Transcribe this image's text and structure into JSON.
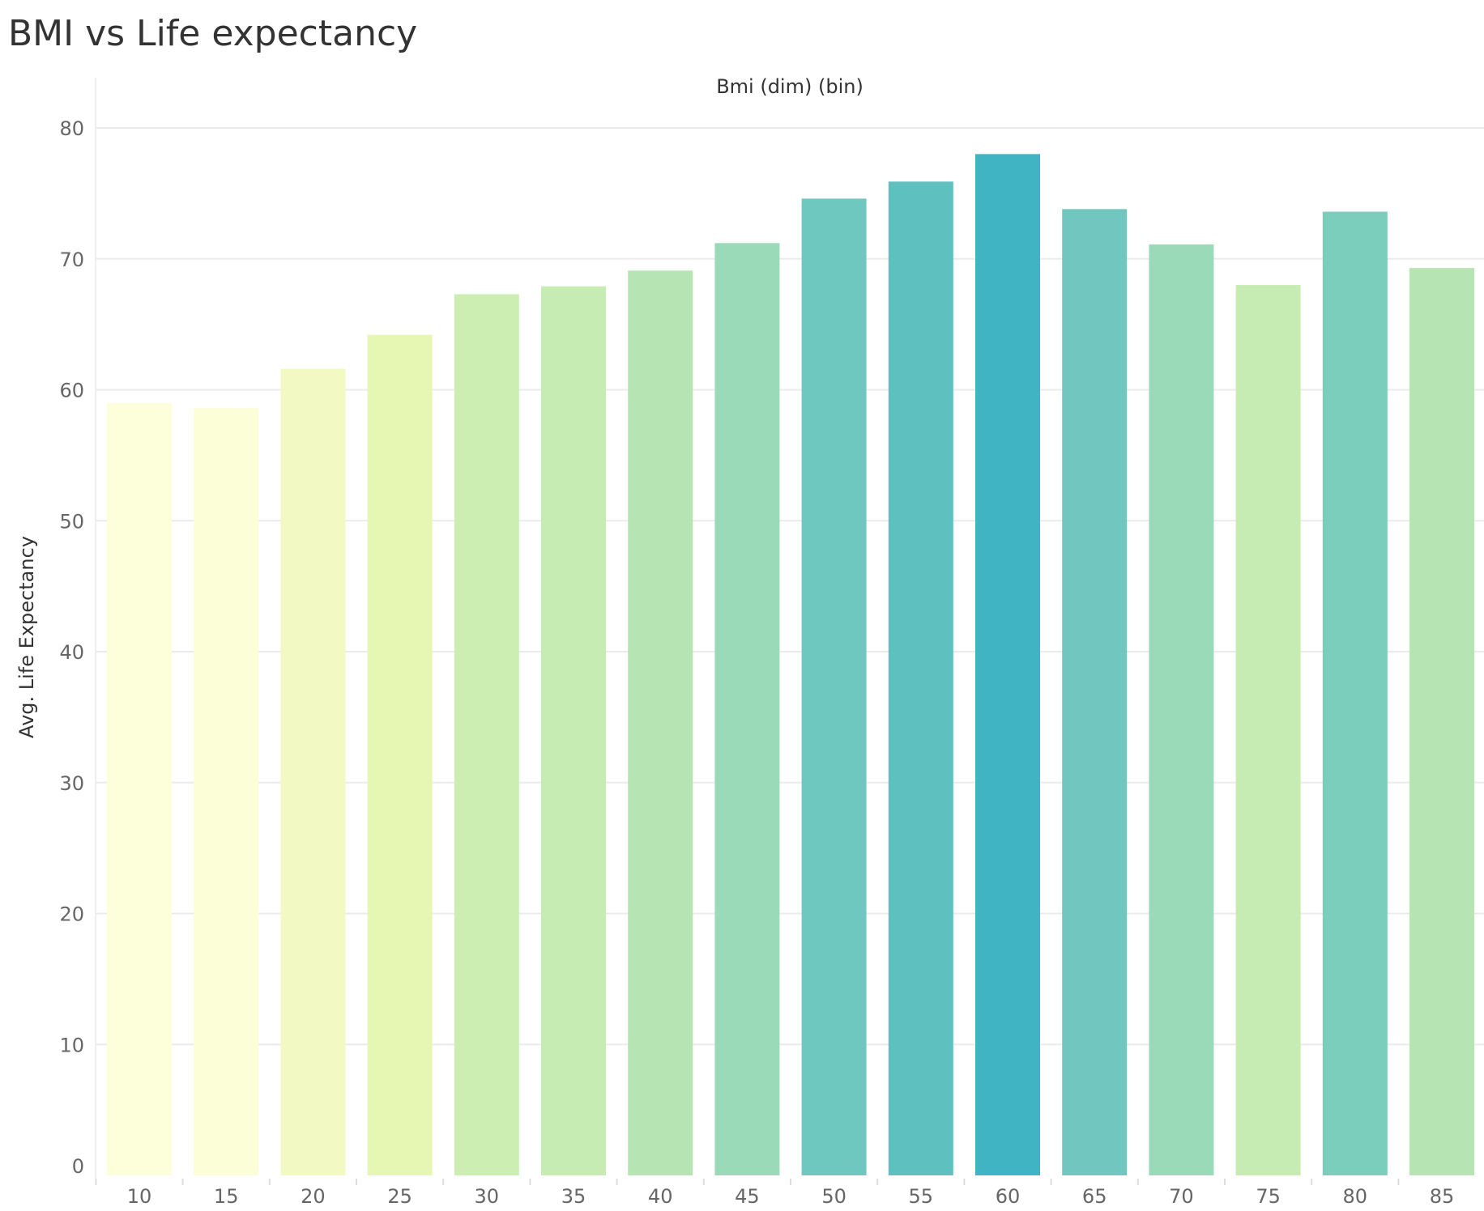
{
  "chart_data": {
    "type": "bar",
    "title": "BMI vs Life expectancy",
    "xlabel": "Bmi (dim) (bin)",
    "ylabel": "Avg. Life Expectancy",
    "categories": [
      "10",
      "15",
      "20",
      "25",
      "30",
      "35",
      "40",
      "45",
      "50",
      "55",
      "60",
      "65",
      "70",
      "75",
      "80",
      "85"
    ],
    "values": [
      59.0,
      58.6,
      61.6,
      64.2,
      67.3,
      67.9,
      69.1,
      71.2,
      74.6,
      75.9,
      78.0,
      73.8,
      71.1,
      68.0,
      73.6,
      69.3
    ],
    "ylim": [
      0,
      80
    ],
    "yticks": [
      0,
      10,
      20,
      30,
      40,
      50,
      60,
      70,
      80
    ],
    "grid": true,
    "legend": "none",
    "colors": [
      "#fcffd9",
      "#fcfed7",
      "#f2f9c3",
      "#e6f6b3",
      "#cdeeb3",
      "#c6ebb3",
      "#b6e5b3",
      "#9bdab8",
      "#6fc8c0",
      "#5fc0c0",
      "#40b4c2",
      "#71c7bf",
      "#9bdab8",
      "#c6ebb3",
      "#7acebb",
      "#b6e5b3"
    ],
    "grid_color": "#ebebeb"
  }
}
